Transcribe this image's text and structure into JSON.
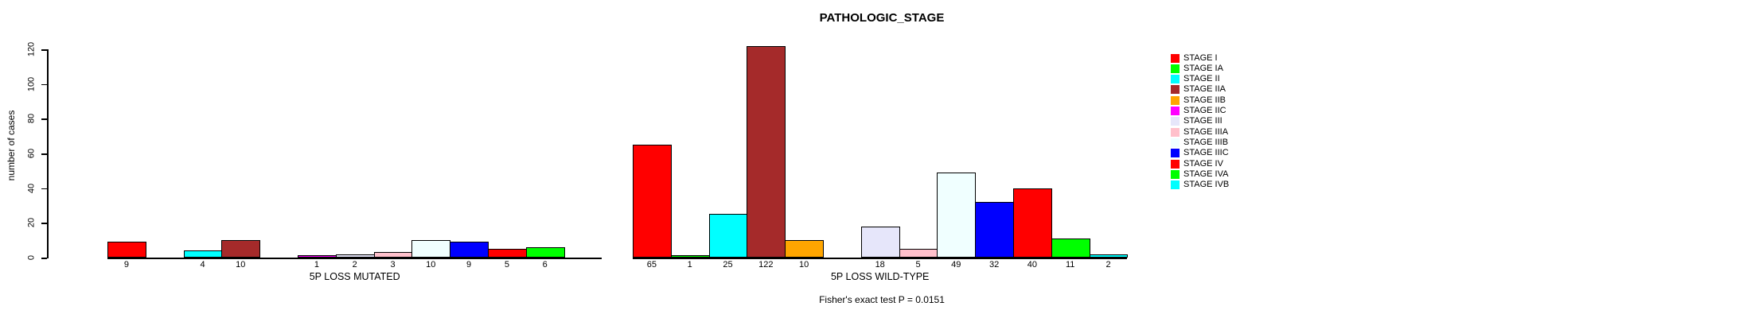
{
  "chart_data": {
    "type": "bar",
    "title": "PATHOLOGIC_STAGE",
    "ylabel": "number of cases",
    "ylim": [
      0,
      120
    ],
    "yticks": [
      0,
      20,
      40,
      60,
      80,
      100,
      120
    ],
    "grid": false,
    "legend_position": "right",
    "categories": [
      "STAGE I",
      "STAGE IA",
      "STAGE II",
      "STAGE IIA",
      "STAGE IIB",
      "STAGE IIC",
      "STAGE III",
      "STAGE IIIA",
      "STAGE IIIB",
      "STAGE IIIC",
      "STAGE IV",
      "STAGE IVA",
      "STAGE IVB"
    ],
    "palette": [
      "#FF0000",
      "#00FF00",
      "#00FFFF",
      "#A52A2A",
      "#FFA500",
      "#FF00FF",
      "#E6E6FA",
      "#FFC0CB",
      "#F0FFFF",
      "#0000FF",
      "#FF0000",
      "#00FF00",
      "#00FFFF"
    ],
    "series": [
      {
        "name": "5P LOSS MUTATED",
        "values": [
          9,
          0,
          4,
          10,
          0,
          1,
          2,
          3,
          10,
          9,
          5,
          6,
          0
        ]
      },
      {
        "name": "5P LOSS WILD-TYPE",
        "values": [
          65,
          1,
          25,
          122,
          10,
          0,
          18,
          5,
          49,
          32,
          40,
          11,
          2
        ]
      }
    ],
    "annotation": "Fisher's exact test P = 0.0151",
    "axis_color": "#000000",
    "bar_border_color": "#000000",
    "background_color": "#FFFFFF"
  }
}
